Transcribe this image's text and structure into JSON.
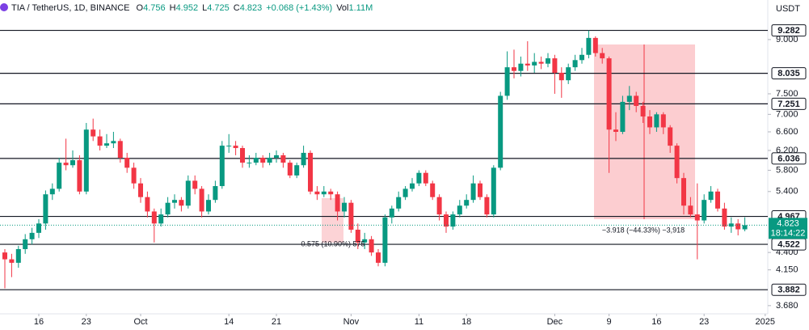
{
  "chart_data": {
    "type": "candlestick",
    "title": "TIA / TetherUS, 1D, BINANCE",
    "ohlc_legend": [
      {
        "label": "O",
        "value": 4.756
      },
      {
        "label": "H",
        "value": 4.952
      },
      {
        "label": "L",
        "value": 4.725
      },
      {
        "label": "C",
        "value": 4.823
      }
    ],
    "change": "+0.068 (+1.43%)",
    "volume_label": "Vol",
    "volume": "1.11M",
    "currency": "USDT",
    "countdown": "18:14:22",
    "log_scale": true,
    "grid": false,
    "up_color": "#089981",
    "down_color": "#f23645",
    "ylim": [
      3.58,
      10.28
    ],
    "yticks": [
      {
        "value": 9,
        "label": "9.000"
      },
      {
        "value": 7.5,
        "label": "7.500"
      },
      {
        "value": 7,
        "label": "7.000"
      },
      {
        "value": 6.6,
        "label": "6.600"
      },
      {
        "value": 6.2,
        "label": "6.200"
      },
      {
        "value": 5.8,
        "label": "5.800"
      },
      {
        "value": 5.4,
        "label": "5.400"
      },
      {
        "value": 4.4,
        "label": "4.400"
      },
      {
        "value": 4.15,
        "label": "4.150"
      },
      {
        "value": 3.68,
        "label": "3.680"
      }
    ],
    "levels": [
      9.282,
      8.035,
      7.251,
      6.036,
      4.967,
      4.522,
      3.882
    ],
    "xticks": [
      {
        "value": 5,
        "label": "16"
      },
      {
        "value": 12,
        "label": "23"
      },
      {
        "value": 20,
        "label": "Oct"
      },
      {
        "value": 33,
        "label": "14"
      },
      {
        "value": 40,
        "label": "21"
      },
      {
        "value": 51,
        "label": "Nov"
      },
      {
        "value": 61,
        "label": "11"
      },
      {
        "value": 68,
        "label": "18"
      },
      {
        "value": 81,
        "label": "Dec"
      },
      {
        "value": 89,
        "label": "9"
      },
      {
        "value": 96,
        "label": "16"
      },
      {
        "value": 103,
        "label": "23"
      },
      {
        "value": 112,
        "label": "2025"
      }
    ],
    "annotations": [
      "−3.918 (−44.33%) −3,918",
      "0.575 (10.90%) 575"
    ],
    "ohlc": [
      [
        4.4,
        4.45,
        3.9,
        4.3
      ],
      [
        4.3,
        4.38,
        4.05,
        4.25
      ],
      [
        4.25,
        4.5,
        4.18,
        4.45
      ],
      [
        4.45,
        4.68,
        4.38,
        4.6
      ],
      [
        4.6,
        4.78,
        4.52,
        4.7
      ],
      [
        4.7,
        4.92,
        4.62,
        4.85
      ],
      [
        4.85,
        5.42,
        4.75,
        5.35
      ],
      [
        5.35,
        5.55,
        5.25,
        5.45
      ],
      [
        5.45,
        6.05,
        5.4,
        5.95
      ],
      [
        5.95,
        6.45,
        5.8,
        5.9
      ],
      [
        5.9,
        6.2,
        5.85,
        6.0
      ],
      [
        6.0,
        6.1,
        5.35,
        5.4
      ],
      [
        5.4,
        6.8,
        5.35,
        6.65
      ],
      [
        6.65,
        6.9,
        6.4,
        6.5
      ],
      [
        6.5,
        6.65,
        6.2,
        6.3
      ],
      [
        6.3,
        6.55,
        6.25,
        6.35
      ],
      [
        6.35,
        6.6,
        6.25,
        6.4
      ],
      [
        6.4,
        6.45,
        5.95,
        6.05
      ],
      [
        6.05,
        6.15,
        5.75,
        5.85
      ],
      [
        5.85,
        5.95,
        5.45,
        5.55
      ],
      [
        5.55,
        5.65,
        5.2,
        5.3
      ],
      [
        5.3,
        5.4,
        4.95,
        5.05
      ],
      [
        5.05,
        5.1,
        4.55,
        4.85
      ],
      [
        4.85,
        5.1,
        4.8,
        5.0
      ],
      [
        5.0,
        5.3,
        4.95,
        5.2
      ],
      [
        5.2,
        5.35,
        5.1,
        5.25
      ],
      [
        5.25,
        5.3,
        5.05,
        5.15
      ],
      [
        5.15,
        5.7,
        5.1,
        5.6
      ],
      [
        5.6,
        5.7,
        5.35,
        5.45
      ],
      [
        5.45,
        5.5,
        4.95,
        5.05
      ],
      [
        5.05,
        5.35,
        5.0,
        5.25
      ],
      [
        5.25,
        5.6,
        5.2,
        5.5
      ],
      [
        5.5,
        6.4,
        5.45,
        6.3
      ],
      [
        6.3,
        6.55,
        6.15,
        6.3
      ],
      [
        6.3,
        6.4,
        6.1,
        6.25
      ],
      [
        6.25,
        6.3,
        5.85,
        5.95
      ],
      [
        5.95,
        6.1,
        5.85,
        5.95
      ],
      [
        5.95,
        6.15,
        5.9,
        6.05
      ],
      [
        6.05,
        6.1,
        5.85,
        5.95
      ],
      [
        5.95,
        6.15,
        5.9,
        6.05
      ],
      [
        6.05,
        6.2,
        5.95,
        6.1
      ],
      [
        6.1,
        6.15,
        5.85,
        5.95
      ],
      [
        5.95,
        6.0,
        5.65,
        5.7
      ],
      [
        5.7,
        5.95,
        5.65,
        5.9
      ],
      [
        5.9,
        6.3,
        5.85,
        6.15
      ],
      [
        6.15,
        6.2,
        5.35,
        5.4
      ],
      [
        5.4,
        5.5,
        5.25,
        5.35
      ],
      [
        5.35,
        5.5,
        5.3,
        5.4
      ],
      [
        5.4,
        5.45,
        5.25,
        5.35
      ],
      [
        5.35,
        5.4,
        4.9,
        5.05
      ],
      [
        5.05,
        5.3,
        4.95,
        5.2
      ],
      [
        5.2,
        5.25,
        4.7,
        4.75
      ],
      [
        4.75,
        4.85,
        4.45,
        4.55
      ],
      [
        4.55,
        4.7,
        4.45,
        4.6
      ],
      [
        4.6,
        4.65,
        4.35,
        4.4
      ],
      [
        4.4,
        4.45,
        4.2,
        4.25
      ],
      [
        4.25,
        5.0,
        4.2,
        4.95
      ],
      [
        4.95,
        5.15,
        4.85,
        5.1
      ],
      [
        5.1,
        5.4,
        5.05,
        5.3
      ],
      [
        5.3,
        5.5,
        5.25,
        5.45
      ],
      [
        5.45,
        5.65,
        5.4,
        5.55
      ],
      [
        5.55,
        5.8,
        5.5,
        5.75
      ],
      [
        5.75,
        5.8,
        5.5,
        5.55
      ],
      [
        5.55,
        5.6,
        5.25,
        5.3
      ],
      [
        5.3,
        5.35,
        4.9,
        5.0
      ],
      [
        5.0,
        5.05,
        4.7,
        4.8
      ],
      [
        4.8,
        5.05,
        4.75,
        5.0
      ],
      [
        5.0,
        5.25,
        4.95,
        5.15
      ],
      [
        5.15,
        5.35,
        5.1,
        5.25
      ],
      [
        5.25,
        5.7,
        5.2,
        5.55
      ],
      [
        5.55,
        5.6,
        5.25,
        5.3
      ],
      [
        5.3,
        5.35,
        4.95,
        5.0
      ],
      [
        5.0,
        5.9,
        4.95,
        5.85
      ],
      [
        5.85,
        7.55,
        5.8,
        7.45
      ],
      [
        7.45,
        8.65,
        7.35,
        8.2
      ],
      [
        8.2,
        8.7,
        7.9,
        8.1
      ],
      [
        8.1,
        8.5,
        7.95,
        8.3
      ],
      [
        8.3,
        8.95,
        8.1,
        8.25
      ],
      [
        8.25,
        8.6,
        8.05,
        8.35
      ],
      [
        8.35,
        8.5,
        8.15,
        8.3
      ],
      [
        8.3,
        8.6,
        8.2,
        8.45
      ],
      [
        8.45,
        8.55,
        7.5,
        8.05
      ],
      [
        8.05,
        8.2,
        7.4,
        7.85
      ],
      [
        7.85,
        8.3,
        7.75,
        8.2
      ],
      [
        8.2,
        8.55,
        8.1,
        8.4
      ],
      [
        8.4,
        8.75,
        8.3,
        8.55
      ],
      [
        8.55,
        9.282,
        8.45,
        9.05
      ],
      [
        9.05,
        9.1,
        8.5,
        8.6
      ],
      [
        8.6,
        8.75,
        8.3,
        8.45
      ],
      [
        8.45,
        8.5,
        5.75,
        6.65
      ],
      [
        6.65,
        7.05,
        6.4,
        6.6
      ],
      [
        6.6,
        7.45,
        6.55,
        7.3
      ],
      [
        7.3,
        7.7,
        7.1,
        7.45
      ],
      [
        7.45,
        7.55,
        7.05,
        7.2
      ],
      [
        7.2,
        7.3,
        6.8,
        6.95
      ],
      [
        6.95,
        7.1,
        6.55,
        6.7
      ],
      [
        6.7,
        7.05,
        6.6,
        7.0
      ],
      [
        7.0,
        7.05,
        6.55,
        6.7
      ],
      [
        6.7,
        6.75,
        6.15,
        6.3
      ],
      [
        6.3,
        6.35,
        5.55,
        5.65
      ],
      [
        5.65,
        5.75,
        5.0,
        5.15
      ],
      [
        5.15,
        5.3,
        4.95,
        5.0
      ],
      [
        5.0,
        5.55,
        4.3,
        4.9
      ],
      [
        4.9,
        5.35,
        4.85,
        5.25
      ],
      [
        5.25,
        5.5,
        5.2,
        5.4
      ],
      [
        5.4,
        5.45,
        5.05,
        5.1
      ],
      [
        5.1,
        5.2,
        4.75,
        4.8
      ],
      [
        4.8,
        4.95,
        4.7,
        4.85
      ],
      [
        4.85,
        4.92,
        4.66,
        4.756
      ],
      [
        4.756,
        4.952,
        4.725,
        4.823
      ]
    ]
  }
}
